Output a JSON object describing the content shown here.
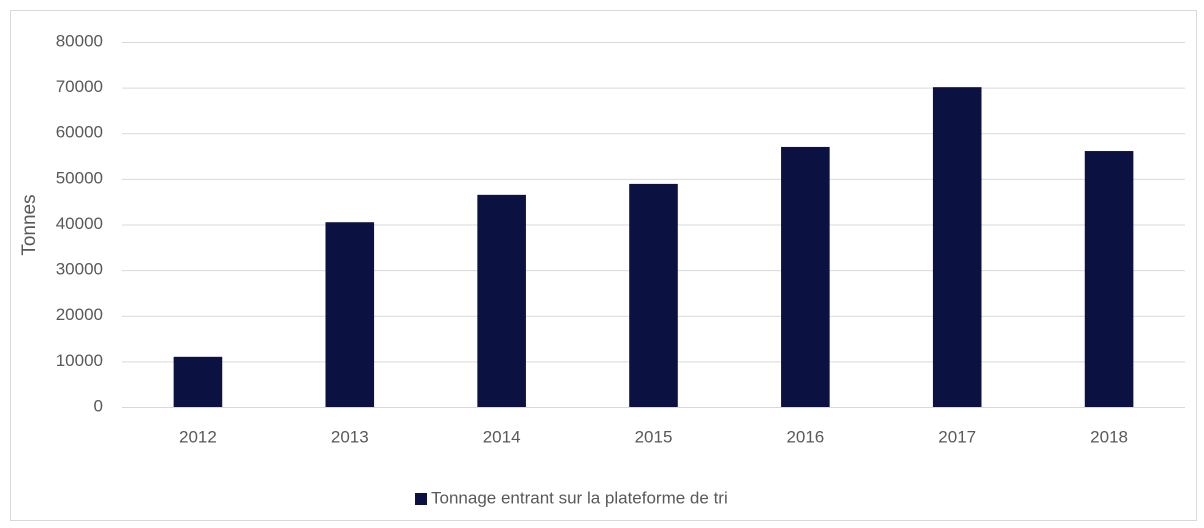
{
  "chart_data": {
    "type": "bar",
    "ylabel": "Tonnes",
    "categories": [
      "2012",
      "2013",
      "2014",
      "2015",
      "2016",
      "2017",
      "2018"
    ],
    "series": [
      {
        "name": "Tonnage entrant sur la plateforme de tri",
        "color": "#0b1241",
        "values": [
          11000,
          40500,
          46500,
          48900,
          57000,
          70100,
          56100
        ]
      }
    ],
    "ylim": [
      0,
      80000
    ],
    "yticks": [
      0,
      10000,
      20000,
      30000,
      40000,
      50000,
      60000,
      70000,
      80000
    ],
    "grid": true,
    "legend": "bottom"
  }
}
